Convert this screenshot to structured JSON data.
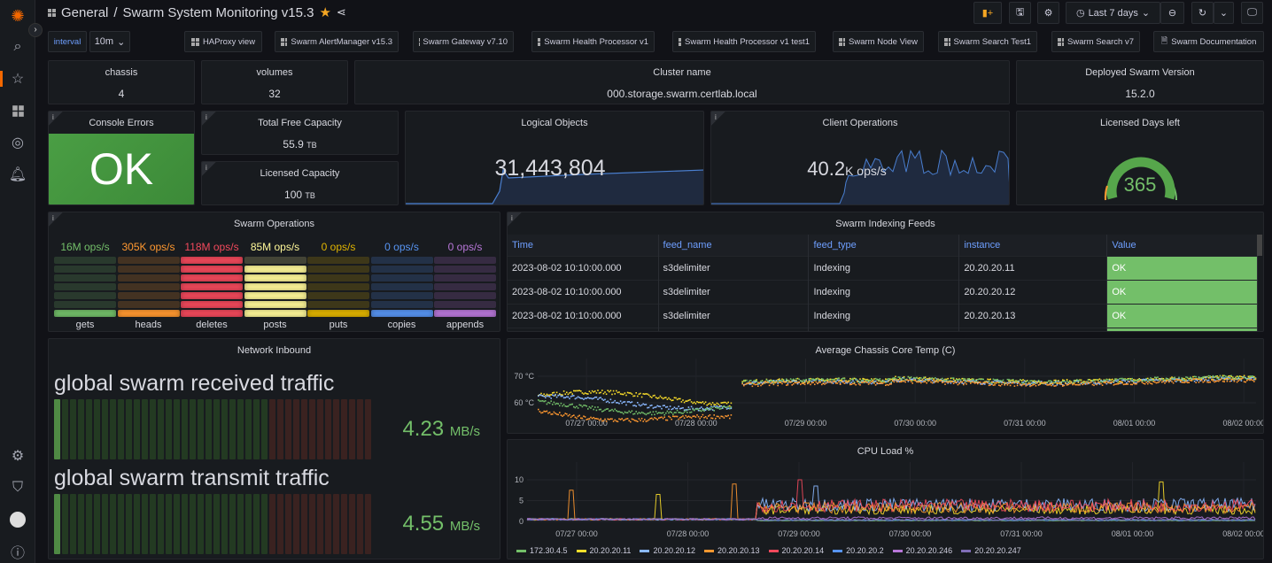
{
  "header": {
    "breadcrumb_folder": "General",
    "separator": "/",
    "title": "Swarm System Monitoring v15.3",
    "time_range": "Last 7 days"
  },
  "variables": {
    "interval_label": "interval",
    "interval_value": "10m"
  },
  "links": [
    "HAProxy view",
    "Swarm AlertManager v15.3",
    "Swarm Gateway v7.10",
    "Swarm Health Processor v1",
    "Swarm Health Processor v1 test1",
    "Swarm Node View",
    "Swarm Search Test1",
    "Swarm Search v7",
    "Swarm Documentation"
  ],
  "stats": {
    "chassis": {
      "title": "chassis",
      "value": "4"
    },
    "volumes": {
      "title": "volumes",
      "value": "32"
    },
    "cluster": {
      "title": "Cluster name",
      "value": "000.storage.swarm.certlab.local"
    },
    "version": {
      "title": "Deployed Swarm Version",
      "value": "15.2.0"
    },
    "console": {
      "title": "Console Errors",
      "value": "OK"
    },
    "free": {
      "title": "Total Free Capacity",
      "value": "55.9",
      "unit": "TB"
    },
    "licensed": {
      "title": "Licensed Capacity",
      "value": "100",
      "unit": "TB"
    },
    "objects": {
      "title": "Logical Objects",
      "value": "31,443,804"
    },
    "client": {
      "title": "Client Operations",
      "value": "40.2",
      "unit": "K ops/s"
    },
    "days": {
      "title": "Licensed Days left",
      "value": "365",
      "gauge_fraction": 1.0
    }
  },
  "colors": {
    "green": "#73bf69",
    "orange": "#ff9830",
    "red": "#f2495c",
    "yellow": "#fade2a",
    "blue": "#5794f2",
    "purple": "#b877d9",
    "lightyellow": "#fff899"
  },
  "ops": {
    "title": "Swarm Operations",
    "items": [
      {
        "label": "gets",
        "value": "16M ops/s",
        "color": "#73bf69",
        "level": 1
      },
      {
        "label": "heads",
        "value": "305K ops/s",
        "color": "#ff9830",
        "level": 1
      },
      {
        "label": "deletes",
        "value": "118M ops/s",
        "color": "#f2495c",
        "level": 7
      },
      {
        "label": "posts",
        "value": "85M ops/s",
        "color": "#fff899",
        "level": 6
      },
      {
        "label": "puts",
        "value": "0 ops/s",
        "color": "#e0b400",
        "level": 1
      },
      {
        "label": "copies",
        "value": "0 ops/s",
        "color": "#5794f2",
        "level": 1
      },
      {
        "label": "appends",
        "value": "0 ops/s",
        "color": "#b877d9",
        "level": 1
      }
    ]
  },
  "feeds": {
    "title": "Swarm Indexing Feeds",
    "columns": [
      "Time",
      "feed_name",
      "feed_type",
      "instance",
      "Value"
    ],
    "rows": [
      [
        "2023-08-02 10:10:00.000",
        "s3delimiter",
        "Indexing",
        "20.20.20.11",
        "OK"
      ],
      [
        "2023-08-02 10:10:00.000",
        "s3delimiter",
        "Indexing",
        "20.20.20.12",
        "OK"
      ],
      [
        "2023-08-02 10:10:00.000",
        "s3delimiter",
        "Indexing",
        "20.20.20.13",
        "OK"
      ]
    ]
  },
  "network": {
    "title": "Network Inbound",
    "rx_label": "global swarm received traffic",
    "rx_value": "4.23",
    "tx_label": "global swarm transmit traffic",
    "tx_value": "4.55",
    "unit": "MB/s"
  },
  "chart_data": [
    {
      "type": "scatter",
      "title": "Average Chassis Core Temp (C)",
      "yticks": [
        "70 °C",
        "60 °C"
      ],
      "ylim": [
        55,
        72
      ],
      "xticks": [
        "07/27 00:00",
        "07/28 00:00",
        "07/29 00:00",
        "07/30 00:00",
        "07/31 00:00",
        "08/01 00:00",
        "08/02 00:00"
      ],
      "series": [
        {
          "color": "#fade2a",
          "before": 63,
          "after": 68
        },
        {
          "color": "#8ab8ff",
          "before": 61,
          "after": 67.5
        },
        {
          "color": "#73bf69",
          "before": 59,
          "after": 68
        },
        {
          "color": "#ff9830",
          "before": 57,
          "after": 67
        }
      ]
    },
    {
      "type": "line",
      "title": "CPU Load %",
      "yticks": [
        "10",
        "5",
        "0"
      ],
      "ylim": [
        0,
        11
      ],
      "xticks": [
        "07/27 00:00",
        "07/28 00:00",
        "07/29 00:00",
        "07/30 00:00",
        "07/31 00:00",
        "08/01 00:00",
        "08/02 00:00"
      ],
      "series": [
        {
          "name": "172.30.4.5",
          "color": "#73bf69",
          "after": 0.2
        },
        {
          "name": "20.20.20.11",
          "color": "#fade2a",
          "after": 2.8
        },
        {
          "name": "20.20.20.12",
          "color": "#8ab8ff",
          "after": 4
        },
        {
          "name": "20.20.20.13",
          "color": "#ff9830",
          "after": 3.3
        },
        {
          "name": "20.20.20.14",
          "color": "#f2495c",
          "after": 3.8
        },
        {
          "name": "20.20.20.2",
          "color": "#5794f2",
          "after": 0.3
        },
        {
          "name": "20.20.20.246",
          "color": "#b877d9",
          "after": 0.8
        },
        {
          "name": "20.20.20.247",
          "color": "#806eb7",
          "after": 0.4
        }
      ]
    }
  ]
}
